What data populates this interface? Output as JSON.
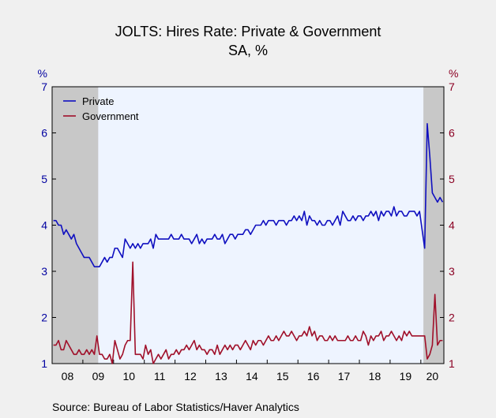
{
  "title": "JOLTS: Hires Rate: Private & Government",
  "subtitle": "SA, %",
  "source": "Source:  Bureau of Labor Statistics/Haver Analytics",
  "colors": {
    "private": "#1010c0",
    "government": "#a0102a",
    "recession": "#c8c8c8",
    "plot_bg": "#eef4ff",
    "left_axis": "#0000a0",
    "right_axis": "#8b0023"
  },
  "chart_data": {
    "type": "line",
    "title": "JOLTS: Hires Rate: Private & Government",
    "subtitle": "SA, %",
    "x_start": "2008-01",
    "frequency": "monthly",
    "xlim": [
      "2008-01",
      "2020-09"
    ],
    "x_tick_labels": [
      "08",
      "09",
      "10",
      "11",
      "12",
      "13",
      "14",
      "15",
      "16",
      "17",
      "18",
      "19",
      "20"
    ],
    "y_left": {
      "label": "%",
      "ylim": [
        1,
        7
      ],
      "ticks": [
        1,
        2,
        3,
        4,
        5,
        6,
        7
      ]
    },
    "y_right": {
      "label": "%",
      "ylim": [
        1,
        7
      ],
      "ticks": [
        1,
        2,
        3,
        4,
        5,
        6,
        7
      ]
    },
    "legend": {
      "placement": "top-left",
      "entries": [
        "Private",
        "Government"
      ]
    },
    "grid": false,
    "recession_bands": [
      {
        "start": "2008-01",
        "end": "2009-06"
      },
      {
        "start": "2020-02",
        "end": "2020-09"
      }
    ],
    "series": [
      {
        "name": "Private",
        "axis": "left",
        "values": [
          4.1,
          4.1,
          4.0,
          4.0,
          3.8,
          3.9,
          3.8,
          3.7,
          3.8,
          3.6,
          3.5,
          3.4,
          3.3,
          3.3,
          3.3,
          3.2,
          3.1,
          3.1,
          3.1,
          3.2,
          3.3,
          3.2,
          3.3,
          3.3,
          3.5,
          3.5,
          3.4,
          3.3,
          3.7,
          3.6,
          3.5,
          3.6,
          3.5,
          3.6,
          3.5,
          3.6,
          3.6,
          3.6,
          3.7,
          3.5,
          3.8,
          3.7,
          3.7,
          3.7,
          3.7,
          3.7,
          3.8,
          3.7,
          3.7,
          3.7,
          3.8,
          3.7,
          3.7,
          3.7,
          3.6,
          3.7,
          3.8,
          3.6,
          3.7,
          3.6,
          3.7,
          3.7,
          3.7,
          3.8,
          3.7,
          3.7,
          3.8,
          3.6,
          3.7,
          3.8,
          3.8,
          3.7,
          3.8,
          3.8,
          3.8,
          3.9,
          3.9,
          3.8,
          3.9,
          4.0,
          4.0,
          4.0,
          4.1,
          4.0,
          4.1,
          4.1,
          4.1,
          4.0,
          4.1,
          4.1,
          4.1,
          4.0,
          4.1,
          4.1,
          4.2,
          4.1,
          4.2,
          4.1,
          4.3,
          4.0,
          4.2,
          4.1,
          4.1,
          4.0,
          4.1,
          4.0,
          4.0,
          4.1,
          4.1,
          4.0,
          4.1,
          4.2,
          4.0,
          4.3,
          4.2,
          4.1,
          4.1,
          4.2,
          4.1,
          4.2,
          4.2,
          4.1,
          4.2,
          4.2,
          4.3,
          4.2,
          4.3,
          4.1,
          4.3,
          4.2,
          4.3,
          4.3,
          4.2,
          4.4,
          4.2,
          4.3,
          4.3,
          4.2,
          4.2,
          4.3,
          4.3,
          4.3,
          4.2,
          4.3,
          3.9,
          3.5,
          6.2,
          5.5,
          4.7,
          4.6,
          4.5,
          4.6,
          4.5
        ]
      },
      {
        "name": "Government",
        "axis": "right",
        "values": [
          1.4,
          1.4,
          1.5,
          1.3,
          1.3,
          1.5,
          1.4,
          1.3,
          1.2,
          1.2,
          1.3,
          1.2,
          1.2,
          1.3,
          1.2,
          1.3,
          1.2,
          1.6,
          1.2,
          1.2,
          1.1,
          1.1,
          1.2,
          1.0,
          1.5,
          1.3,
          1.1,
          1.2,
          1.4,
          1.5,
          1.5,
          3.2,
          1.2,
          1.2,
          1.2,
          1.1,
          1.4,
          1.2,
          1.3,
          1.0,
          1.1,
          1.2,
          1.1,
          1.2,
          1.3,
          1.1,
          1.2,
          1.2,
          1.3,
          1.2,
          1.3,
          1.3,
          1.4,
          1.3,
          1.4,
          1.5,
          1.3,
          1.4,
          1.3,
          1.3,
          1.2,
          1.3,
          1.3,
          1.2,
          1.4,
          1.2,
          1.3,
          1.4,
          1.3,
          1.4,
          1.3,
          1.4,
          1.4,
          1.3,
          1.4,
          1.5,
          1.4,
          1.3,
          1.5,
          1.4,
          1.5,
          1.5,
          1.4,
          1.5,
          1.6,
          1.5,
          1.5,
          1.6,
          1.5,
          1.6,
          1.7,
          1.6,
          1.6,
          1.7,
          1.6,
          1.5,
          1.6,
          1.6,
          1.7,
          1.6,
          1.8,
          1.6,
          1.7,
          1.5,
          1.6,
          1.6,
          1.5,
          1.5,
          1.6,
          1.5,
          1.6,
          1.5,
          1.5,
          1.5,
          1.5,
          1.6,
          1.5,
          1.5,
          1.6,
          1.5,
          1.5,
          1.7,
          1.6,
          1.4,
          1.6,
          1.5,
          1.6,
          1.6,
          1.7,
          1.5,
          1.6,
          1.6,
          1.7,
          1.6,
          1.5,
          1.6,
          1.5,
          1.7,
          1.6,
          1.7,
          1.6,
          1.6,
          1.6,
          1.6,
          1.6,
          1.6,
          1.1,
          1.2,
          1.4,
          2.5,
          1.4,
          1.5,
          1.5
        ]
      }
    ]
  }
}
